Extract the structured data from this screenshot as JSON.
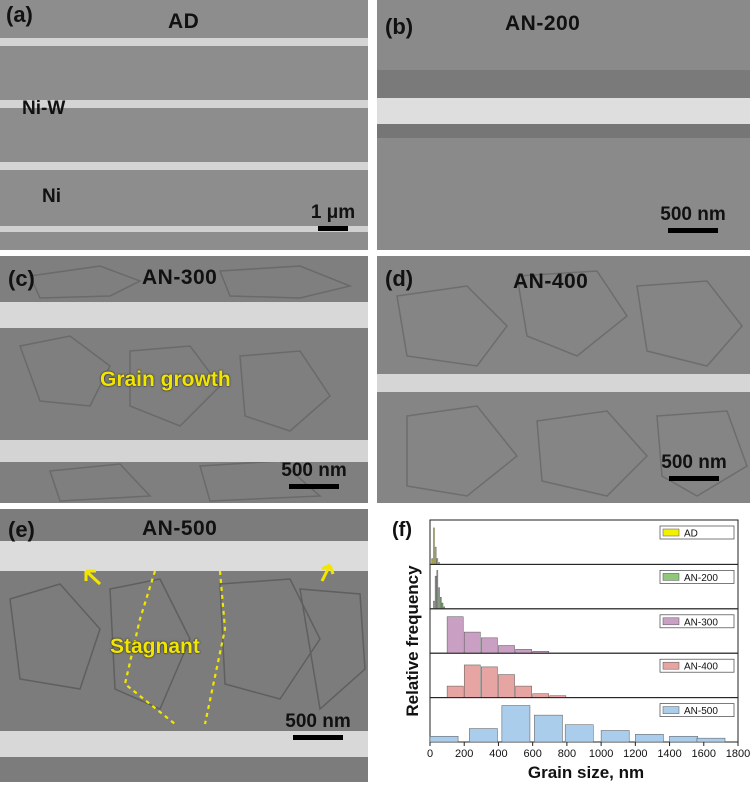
{
  "panels": {
    "a": {
      "label": "(a)",
      "title": "AD",
      "layer1": "Ni-W",
      "layer2": "Ni",
      "scale": "1 μm"
    },
    "b": {
      "label": "(b)",
      "title": "AN-200",
      "scale": "500 nm"
    },
    "c": {
      "label": "(c)",
      "title": "AN-300",
      "annotation": "Grain growth",
      "scale": "500  nm"
    },
    "d": {
      "label": "(d)",
      "title": "AN-400",
      "scale": "500 nm"
    },
    "e": {
      "label": "(e)",
      "title": "AN-500",
      "annotation": "Stagnant",
      "scale": "500 nm"
    }
  },
  "chart_data": {
    "type": "bar",
    "panel_label": "(f)",
    "xlabel": "Grain size, nm",
    "ylabel": "Relative frequency",
    "xlim": [
      0,
      1800
    ],
    "xticks": [
      0,
      200,
      400,
      600,
      800,
      1000,
      1200,
      1400,
      1600,
      1800
    ],
    "series": [
      {
        "name": "AD",
        "color": "#f4f000",
        "bin_width": 10,
        "bin_starts": [
          10,
          20,
          30,
          40,
          50
        ],
        "values": [
          0.15,
          0.95,
          0.45,
          0.15,
          0.05
        ]
      },
      {
        "name": "AN-200",
        "color": "#8fc87a",
        "bin_width": 10,
        "bin_starts": [
          20,
          30,
          40,
          50,
          60,
          70,
          80
        ],
        "values": [
          0.2,
          0.85,
          1.0,
          0.55,
          0.3,
          0.15,
          0.05
        ]
      },
      {
        "name": "AN-300",
        "color": "#c9a0c4",
        "bin_width": 100,
        "bin_starts": [
          100,
          200,
          300,
          400,
          500,
          600
        ],
        "values": [
          0.95,
          0.55,
          0.4,
          0.2,
          0.1,
          0.05
        ]
      },
      {
        "name": "AN-400",
        "color": "#e6a5a2",
        "bin_width": 100,
        "bin_starts": [
          100,
          200,
          300,
          400,
          500,
          600,
          700
        ],
        "values": [
          0.3,
          0.85,
          0.8,
          0.6,
          0.3,
          0.1,
          0.05
        ]
      },
      {
        "name": "AN-500",
        "color": "#a9cdea",
        "bin_width": 170,
        "bin_starts": [
          0,
          230,
          420,
          610,
          790,
          1000,
          1200,
          1400,
          1560
        ],
        "values": [
          0.15,
          0.35,
          0.95,
          0.7,
          0.45,
          0.3,
          0.2,
          0.15,
          0.1
        ]
      }
    ]
  }
}
